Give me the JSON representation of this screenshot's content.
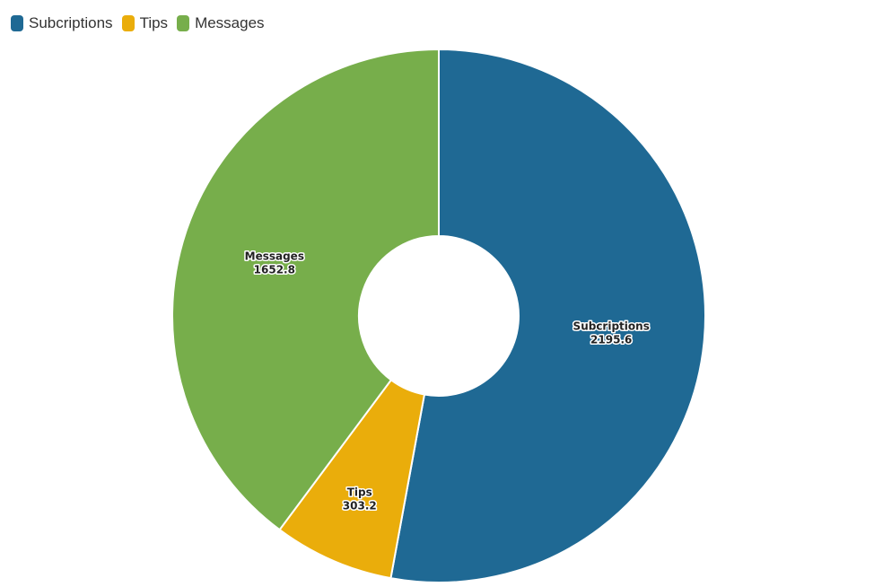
{
  "chart_data": {
    "type": "pie",
    "variant": "donut",
    "legend_position": "top-left",
    "series": [
      {
        "name": "Subcriptions",
        "value": 2195.6,
        "color": "#1f6994"
      },
      {
        "name": "Tips",
        "value": 303.2,
        "color": "#eaad0b"
      },
      {
        "name": "Messages",
        "value": 1652.8,
        "color": "#77ae4b"
      }
    ]
  }
}
